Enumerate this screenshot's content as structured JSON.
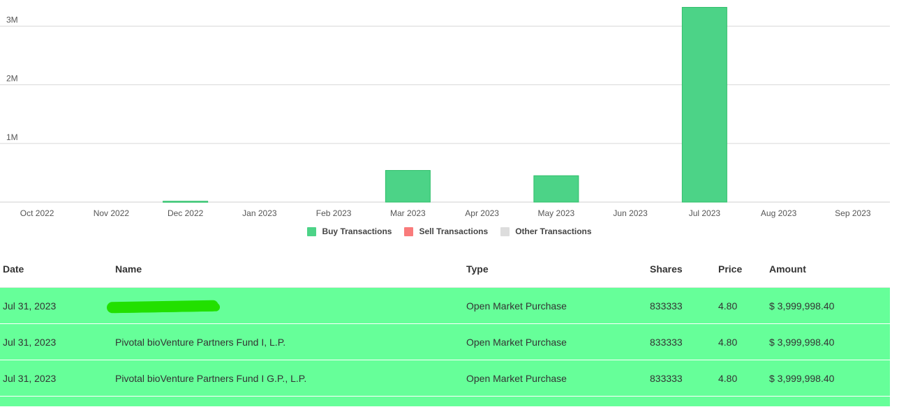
{
  "chart_data": {
    "type": "bar",
    "categories": [
      "Oct 2022",
      "Nov 2022",
      "Dec 2022",
      "Jan 2023",
      "Feb 2023",
      "Mar 2023",
      "Apr 2023",
      "May 2023",
      "Jun 2023",
      "Jul 2023",
      "Aug 2023",
      "Sep 2023"
    ],
    "series": [
      {
        "name": "Buy Transactions",
        "color": "#4cd387",
        "values": [
          0,
          0,
          15000,
          0,
          0,
          540000,
          0,
          450000,
          0,
          3320000,
          0,
          0
        ]
      },
      {
        "name": "Sell Transactions",
        "color": "#f97b7b",
        "values": [
          0,
          0,
          0,
          0,
          0,
          0,
          0,
          0,
          0,
          0,
          0,
          0
        ]
      },
      {
        "name": "Other Transactions",
        "color": "#dddddd",
        "values": [
          0,
          0,
          0,
          0,
          0,
          0,
          0,
          0,
          0,
          0,
          0,
          0
        ]
      }
    ],
    "y_ticks": [
      {
        "value": 1000000,
        "label": "1M"
      },
      {
        "value": 2000000,
        "label": "2M"
      },
      {
        "value": 3000000,
        "label": "3M"
      }
    ],
    "ylim": [
      0,
      3350000
    ],
    "legend_position": "bottom-center",
    "grid": true
  },
  "table": {
    "headers": {
      "date": "Date",
      "name": "Name",
      "type": "Type",
      "shares": "Shares",
      "price": "Price",
      "amount": "Amount"
    },
    "rows": [
      {
        "date": "Jul 31, 2023",
        "name": "",
        "redacted": true,
        "type": "Open Market Purchase",
        "shares": "833333",
        "price": "4.80",
        "amount": "$ 3,999,998.40"
      },
      {
        "date": "Jul 31, 2023",
        "name": "Pivotal bioVenture Partners Fund I, L.P.",
        "type": "Open Market Purchase",
        "shares": "833333",
        "price": "4.80",
        "amount": "$ 3,999,998.40"
      },
      {
        "date": "Jul 31, 2023",
        "name": "Pivotal bioVenture Partners Fund I G.P., L.P.",
        "type": "Open Market Purchase",
        "shares": "833333",
        "price": "4.80",
        "amount": "$ 3,999,998.40"
      }
    ],
    "row_color": "#66ff99"
  }
}
